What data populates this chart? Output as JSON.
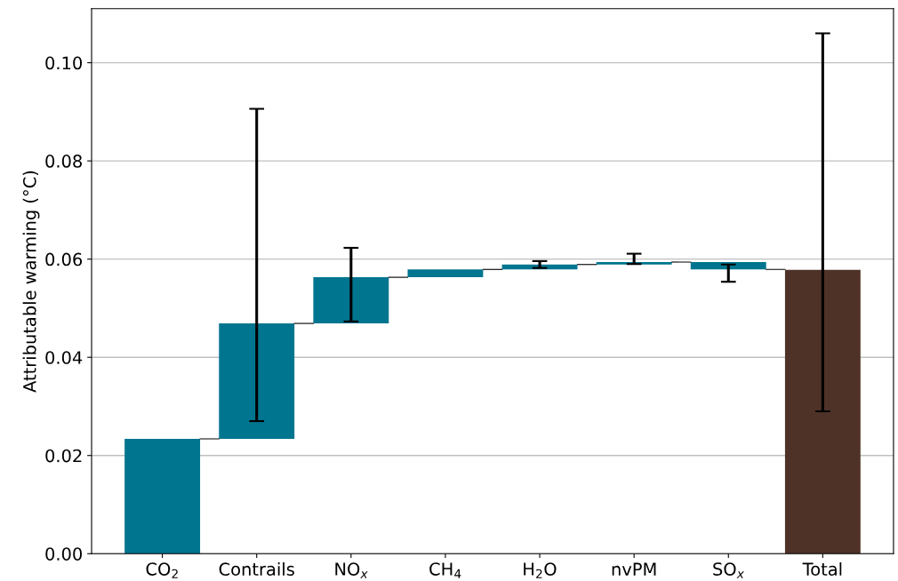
{
  "chart_data": {
    "type": "bar",
    "ylabel": "Attributable warming (°C)",
    "categories": [
      "CO$_{2}$",
      "Contrails",
      "NO$_{x}$",
      "CH$_{4}$",
      "H$_{2}$O",
      "nvPM",
      "SO$_{x}$",
      "Total"
    ],
    "values": [
      0.0234,
      0.0235,
      0.0094,
      0.0016,
      0.001,
      0.0005,
      -0.0015,
      0.0578
    ],
    "base": [
      0,
      0.0234,
      0.0469,
      0.0563,
      0.0579,
      0.0589,
      0.0594,
      0
    ],
    "colors": [
      "#00758f",
      "#00758f",
      "#00758f",
      "#00758f",
      "#00758f",
      "#00758f",
      "#00758f",
      "#4e3227"
    ],
    "errors": [
      null,
      [
        0.027,
        0.0906
      ],
      [
        0.0473,
        0.0623
      ],
      null,
      [
        0.0582,
        0.0596
      ],
      [
        0.059,
        0.0611
      ],
      [
        0.0554,
        0.0589
      ],
      [
        0.029,
        0.106
      ]
    ],
    "ylim": [
      0,
      0.111
    ],
    "yticks": [
      {
        "value": 0,
        "label": "0.00"
      },
      {
        "value": 0.02,
        "label": "0.02"
      },
      {
        "value": 0.04,
        "label": "0.04"
      },
      {
        "value": 0.06,
        "label": "0.06"
      },
      {
        "value": 0.08,
        "label": "0.08"
      },
      {
        "value": 0.1,
        "label": "0.10"
      }
    ],
    "grid": "y",
    "legend": false
  }
}
